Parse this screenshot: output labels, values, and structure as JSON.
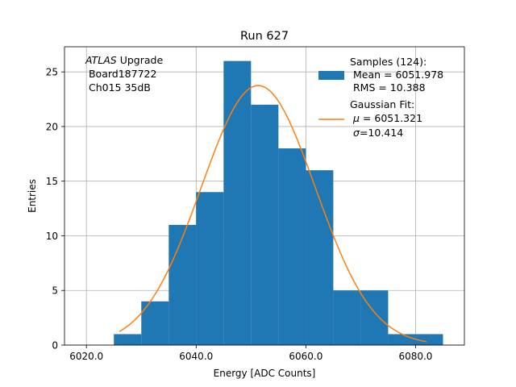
{
  "chart_data": {
    "type": "bar",
    "title": "Run 627",
    "xlabel": "Energy [ADC Counts]",
    "ylabel": "Entries",
    "xlim": [
      6016.0,
      6088.9
    ],
    "ylim": [
      0,
      27.3
    ],
    "x_ticks": [
      6020.0,
      6040.0,
      6060.0,
      6080.0
    ],
    "x_tick_labels": [
      "6020.0",
      "6040.0",
      "6060.0",
      "6080.0"
    ],
    "y_ticks": [
      0,
      5,
      10,
      15,
      20,
      25
    ],
    "y_tick_labels": [
      "0",
      "5",
      "10",
      "15",
      "20",
      "25"
    ],
    "grid": true,
    "histogram": {
      "bin_edges": [
        6025.0,
        6030.0,
        6035.0,
        6040.0,
        6045.0,
        6050.0,
        6055.0,
        6060.0,
        6065.0,
        6070.0,
        6075.0,
        6080.0,
        6085.0
      ],
      "counts": [
        1,
        4,
        11,
        14,
        26,
        22,
        18,
        16,
        5,
        5,
        1,
        1
      ],
      "color": "#1f77b4"
    },
    "fit": {
      "mu": 6051.321,
      "sigma": 10.414,
      "amplitude": 23.75,
      "x_range": [
        6026.0,
        6082.0
      ],
      "color": "#ff7f0e"
    },
    "annotation": {
      "experiment": "ATLAS",
      "line1_rest": " Upgrade",
      "line2": " Board187722",
      "line3": " Ch015 35dB"
    },
    "legend": {
      "position": "top-right",
      "samples_title": "Samples (124):",
      "samples_mean": " Mean = 6051.978",
      "samples_rms": " RMS = 10.388",
      "fit_title": "Gaussian Fit:",
      "fit_mu_symbol": "μ",
      "fit_mu_value": " = 6051.321",
      "fit_sigma_symbol": "σ",
      "fit_sigma_value": "=10.414"
    }
  }
}
